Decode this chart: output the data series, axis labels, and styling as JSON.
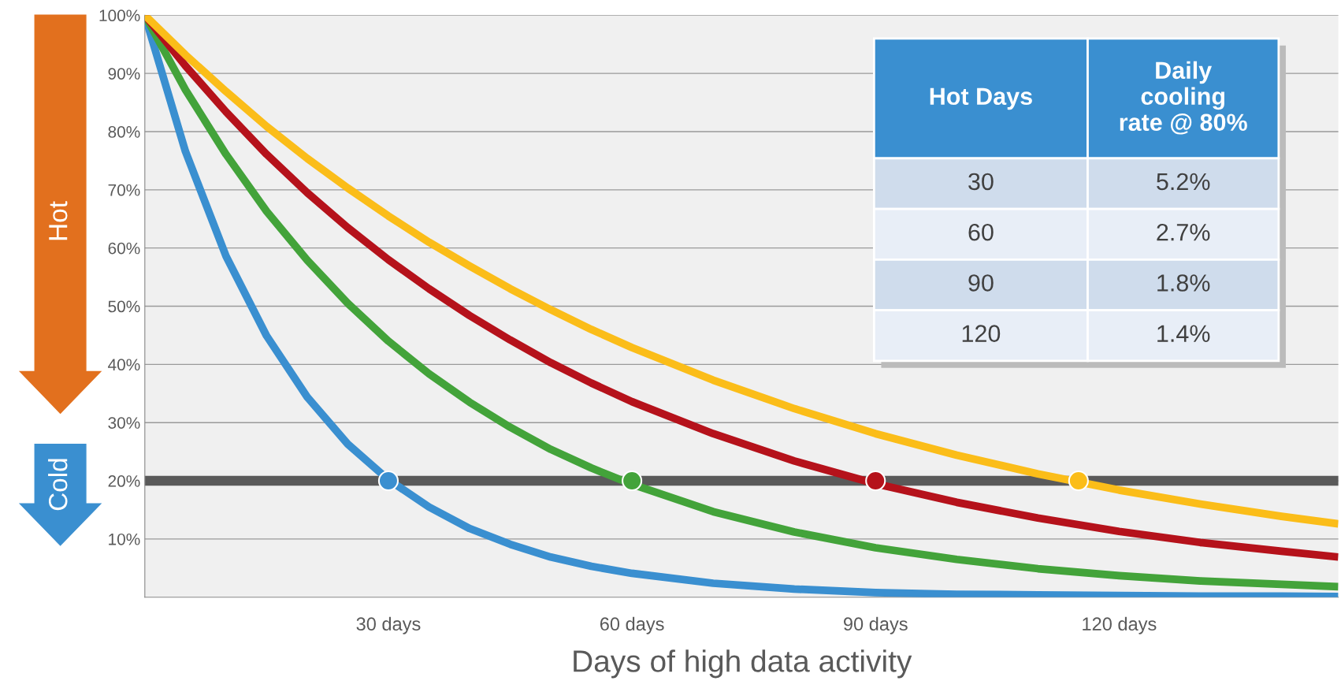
{
  "chart_data": {
    "type": "line",
    "xlabel": "Days of high data activity",
    "x": [
      0,
      5,
      10,
      15,
      20,
      25,
      30,
      35,
      40,
      45,
      50,
      55,
      60,
      70,
      80,
      90,
      100,
      110,
      120,
      130,
      140,
      147
    ],
    "series": [
      {
        "color": "#3a8fd0",
        "values": [
          100,
          76.6,
          58.6,
          44.9,
          34.4,
          26.3,
          20.2,
          15.5,
          11.8,
          9.1,
          6.9,
          5.3,
          4.1,
          2.4,
          1.4,
          0.8,
          0.5,
          0.4,
          0.3,
          0.2,
          0.2,
          0.1
        ]
      },
      {
        "color": "#43a33a",
        "values": [
          100,
          87.2,
          76.1,
          66.3,
          57.9,
          50.5,
          44.0,
          38.4,
          33.5,
          29.2,
          25.4,
          22.2,
          19.4,
          14.7,
          11.2,
          8.5,
          6.5,
          4.9,
          3.7,
          2.8,
          2.2,
          1.8
        ]
      },
      {
        "color": "#b5121b",
        "values": [
          100,
          91.3,
          83.4,
          76.1,
          69.5,
          63.5,
          58.0,
          53.0,
          48.4,
          44.2,
          40.3,
          36.8,
          33.6,
          28.1,
          23.4,
          19.5,
          16.3,
          13.6,
          11.3,
          9.4,
          7.9,
          6.9
        ]
      },
      {
        "color": "#fbbd19",
        "values": [
          100,
          93.2,
          86.9,
          80.9,
          75.4,
          70.3,
          65.5,
          61.0,
          56.9,
          53.0,
          49.4,
          46.0,
          42.9,
          37.3,
          32.4,
          28.1,
          24.4,
          21.2,
          18.4,
          16.0,
          13.9,
          12.6
        ]
      },
      {
        "type": "scatter",
        "marker": "circle",
        "x": [
          30,
          60,
          90,
          115
        ],
        "values": [
          20,
          20,
          20,
          20
        ],
        "colors": [
          "#3a8fd0",
          "#43a33a",
          "#b5121b",
          "#fbbd19"
        ]
      }
    ],
    "xlim": [
      0,
      147
    ],
    "ylim": [
      0,
      100
    ],
    "xticks": [
      {
        "value": 30,
        "label": "30 days"
      },
      {
        "value": 60,
        "label": "60 days"
      },
      {
        "value": 90,
        "label": "90 days"
      },
      {
        "value": 120,
        "label": "120 days"
      }
    ],
    "yticks": [
      {
        "value": 10,
        "label": "10%"
      },
      {
        "value": 20,
        "label": "20%"
      },
      {
        "value": 30,
        "label": "30%"
      },
      {
        "value": 40,
        "label": "40%"
      },
      {
        "value": 50,
        "label": "50%"
      },
      {
        "value": 60,
        "label": "60%"
      },
      {
        "value": 70,
        "label": "70%"
      },
      {
        "value": 80,
        "label": "80%"
      },
      {
        "value": 90,
        "label": "90%"
      },
      {
        "value": 100,
        "label": "100%"
      }
    ],
    "grid": "y",
    "marker": "none",
    "ref_lines": [
      {
        "axis": "y",
        "value": 20,
        "color": "#5a5a5a"
      }
    ],
    "annotations": [
      "Hot",
      "Cold",
      "Hot Days",
      "Daily\ncooling\nrate @ 80%",
      "30",
      "5.2%",
      "60",
      "2.7%",
      "90",
      "1.8%",
      "120",
      "1.4%"
    ]
  }
}
